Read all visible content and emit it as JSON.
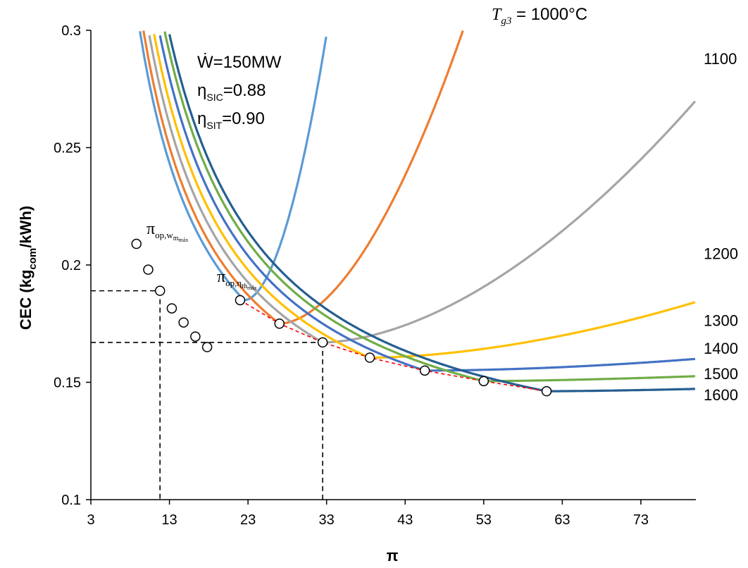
{
  "chart_data": {
    "type": "line",
    "title": "",
    "xlabel": "π",
    "ylabel": {
      "pre": "CEC (kg",
      "sub": "com",
      "post": "/kWh)"
    },
    "xlim": [
      3,
      80
    ],
    "ylim": [
      0.1,
      0.3
    ],
    "xticks": [
      3,
      13,
      23,
      33,
      43,
      53,
      63,
      73
    ],
    "yticks": [
      0.1,
      0.15,
      0.2,
      0.25,
      0.3
    ],
    "grid": false,
    "parameters": {
      "power": "Ẇ=150MW",
      "eta_sic": {
        "base": "η",
        "sub": "SIC",
        "value": "=0.88"
      },
      "eta_sit": {
        "base": "η",
        "sub": "SIT",
        "value": "=0.90"
      }
    },
    "temperature_label": {
      "t": "T",
      "sub": "g3",
      "eq": " = 1000°C"
    },
    "series": [
      {
        "label": "1000",
        "color": "#5B9BD5",
        "min_x": 22.5,
        "min_y": 0.185,
        "curv": 0.0013,
        "pow": 1.9
      },
      {
        "label": "1100",
        "color": "#ED7D31",
        "min_x": 27.0,
        "min_y": 0.175,
        "curv": 0.00043,
        "pow": 1.8
      },
      {
        "label": "1200",
        "color": "#A5A5A5",
        "min_x": 32.5,
        "min_y": 0.167,
        "curv": 0.00012,
        "pow": 1.75
      },
      {
        "label": "1300",
        "color": "#FFC000",
        "min_x": 38.5,
        "min_y": 0.1605,
        "curv": 3.5e-05,
        "pow": 1.75
      },
      {
        "label": "1400",
        "color": "#4472C4",
        "min_x": 45.5,
        "min_y": 0.155,
        "curv": 8.5e-06,
        "pow": 1.8
      },
      {
        "label": "1500",
        "color": "#70AD47",
        "min_x": 53.0,
        "min_y": 0.1505,
        "curv": 1.5e-05,
        "pow": 1.5
      },
      {
        "label": "1600",
        "color": "#255E91",
        "min_x": 61.0,
        "min_y": 0.1462,
        "curv": 1.2e-05,
        "pow": 1.5
      }
    ],
    "curve_label_y": [
      0.288,
      0.205,
      0.1765,
      0.1645,
      0.1538,
      0.1448
    ],
    "max_net_work_points": {
      "label": {
        "base": "π",
        "sub": "op,w",
        "subsub": "m",
        "subsubsub": "máx"
      },
      "x": [
        8.8,
        10.3,
        11.8,
        13.3,
        14.8,
        16.3,
        17.8
      ],
      "y": [
        0.209,
        0.198,
        0.189,
        0.1815,
        0.1755,
        0.1695,
        0.165
      ]
    },
    "max_efficiency_points": {
      "label": {
        "base": "π",
        "sub": "op,η",
        "subsub": "th",
        "subsubsub": "máx"
      },
      "x": [
        22.0,
        27.0,
        32.5,
        38.5,
        45.5,
        53.0,
        61.0
      ],
      "y": [
        0.185,
        0.175,
        0.167,
        0.1605,
        0.155,
        0.1505,
        0.1462
      ]
    },
    "reference_lines": [
      {
        "x": 11.8,
        "y": 0.189
      },
      {
        "x": 32.5,
        "y": 0.167
      }
    ]
  }
}
